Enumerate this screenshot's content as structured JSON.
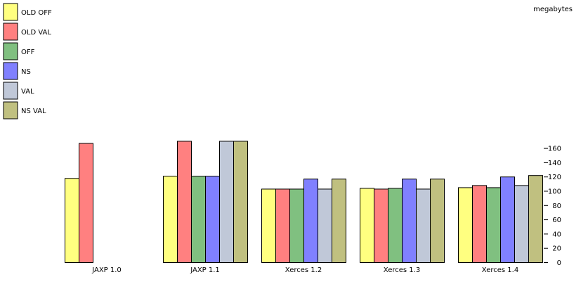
{
  "chart_data": {
    "type": "bar",
    "ylabel": "megabytes",
    "ylim": [
      0,
      170
    ],
    "yticks": [
      0,
      20,
      40,
      60,
      80,
      100,
      120,
      140,
      160
    ],
    "y_axis_side": "right",
    "legend_position": "left",
    "grid": false,
    "categories": [
      "JAXP 1.0",
      "JAXP 1.1",
      "Xerces 1.2",
      "Xerces 1.3",
      "Xerces 1.4"
    ],
    "series": [
      {
        "name": "OLD OFF",
        "color": "#ffff80",
        "values": [
          118,
          121,
          103,
          104,
          105
        ]
      },
      {
        "name": "OLD VAL",
        "color": "#ff8080",
        "values": [
          167,
          170,
          103,
          103,
          108
        ]
      },
      {
        "name": "OFF",
        "color": "#80c080",
        "values": [
          null,
          121,
          103,
          104,
          105
        ]
      },
      {
        "name": "NS",
        "color": "#8080ff",
        "values": [
          null,
          121,
          117,
          117,
          120
        ]
      },
      {
        "name": "VAL",
        "color": "#c0c8d8",
        "values": [
          null,
          170,
          103,
          103,
          108
        ]
      },
      {
        "name": "NS VAL",
        "color": "#c0c080",
        "values": [
          null,
          170,
          117,
          117,
          122
        ]
      }
    ]
  }
}
